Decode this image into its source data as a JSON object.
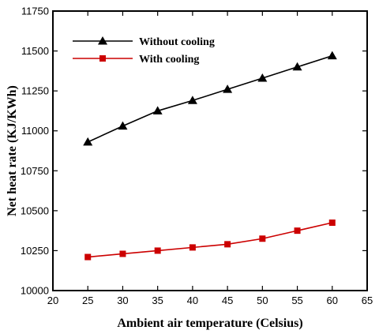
{
  "chart_data": {
    "type": "line",
    "title": "",
    "xlabel": "Ambient air temperature (Celsius)",
    "ylabel": "Net heat rate (KJ/KWh)",
    "xlim": [
      20,
      65
    ],
    "ylim": [
      10000,
      11750
    ],
    "xticks": [
      20,
      25,
      30,
      35,
      40,
      45,
      50,
      55,
      60,
      65
    ],
    "yticks": [
      10000,
      10250,
      10500,
      10750,
      11000,
      11250,
      11500,
      11750
    ],
    "grid": false,
    "legend_position": "top-left",
    "x": [
      25,
      30,
      35,
      40,
      45,
      50,
      55,
      60
    ],
    "series": [
      {
        "name": "Without cooling",
        "values": [
          10930,
          11030,
          11125,
          11190,
          11260,
          11330,
          11400,
          11470
        ],
        "color": "#000000",
        "marker": "triangle"
      },
      {
        "name": "With cooling",
        "values": [
          10210,
          10230,
          10250,
          10270,
          10290,
          10325,
          10375,
          10425
        ],
        "color": "#cc0000",
        "marker": "square"
      }
    ]
  }
}
